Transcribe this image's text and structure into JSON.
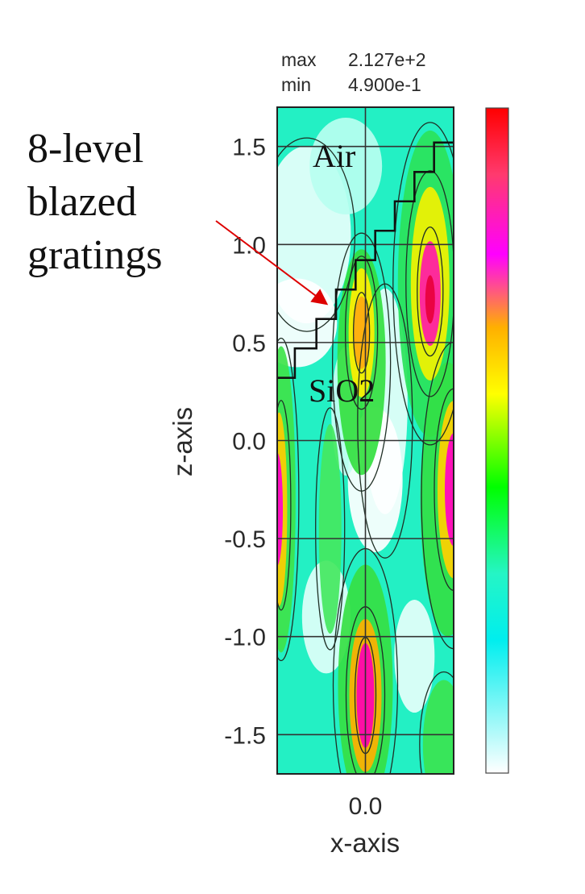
{
  "chart_data": {
    "type": "heatmap",
    "xlabel": "x-axis",
    "ylabel": "z-axis",
    "x_ticks": [
      0.0
    ],
    "x_tick_labels": [
      "0.0"
    ],
    "y_ticks": [
      1.5,
      1.0,
      0.5,
      0.0,
      -0.5,
      -1.0,
      -1.5
    ],
    "y_tick_labels": [
      "1.5",
      "1.0",
      "0.5",
      "0.0",
      "-0.5",
      "-1.0",
      "-1.5"
    ],
    "xlim": [
      -0.45,
      0.45
    ],
    "ylim": [
      -1.7,
      1.7
    ],
    "colorbar": {
      "max_label": "max",
      "max_value": "2.127e+2",
      "min_label": "min",
      "min_value": "4.900e-1",
      "colors_top_to_bottom": [
        "#ff0000",
        "#ff3a6e",
        "#ff00ff",
        "#ffb000",
        "#ffff00",
        "#00ff00",
        "#25f5c5",
        "#00eeee",
        "#ffffff"
      ]
    },
    "regions": {
      "top": "Air",
      "bottom": "SiO2"
    },
    "grating_profile_note": "8-level staircase",
    "grating_steps": [
      {
        "x": -0.45,
        "z": 0.32
      },
      {
        "x": -0.36,
        "z": 0.47
      },
      {
        "x": -0.25,
        "z": 0.62
      },
      {
        "x": -0.15,
        "z": 0.77
      },
      {
        "x": -0.05,
        "z": 0.92
      },
      {
        "x": 0.05,
        "z": 1.07
      },
      {
        "x": 0.15,
        "z": 1.22
      },
      {
        "x": 0.25,
        "z": 1.37
      },
      {
        "x": 0.35,
        "z": 1.52
      }
    ],
    "hotspots": [
      {
        "x": 0.35,
        "z": 0.75,
        "level": "high"
      },
      {
        "x": 0.0,
        "z": 0.55,
        "level": "medium"
      },
      {
        "x": 0.0,
        "z": -1.3,
        "level": "high"
      },
      {
        "x": 0.45,
        "z": -0.25,
        "level": "high"
      },
      {
        "x": -0.45,
        "z": -0.35,
        "level": "high"
      }
    ]
  },
  "annotation": {
    "lines": [
      "8-level",
      "blazed",
      "gratings"
    ]
  }
}
